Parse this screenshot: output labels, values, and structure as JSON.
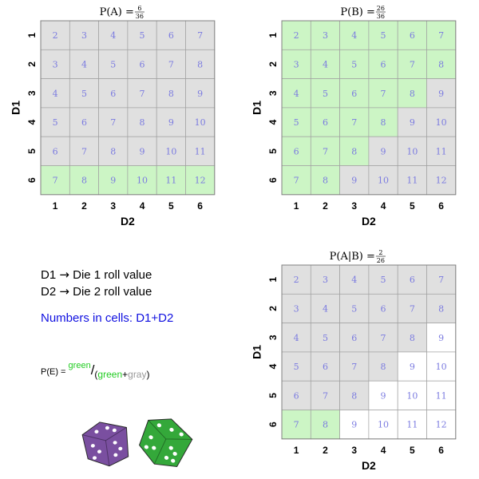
{
  "colors": {
    "green": "#ccf5c5",
    "gray": "#e0e0e0",
    "white": "#ffffff",
    "cell_text": "#7b7be0",
    "grid_line": "#a0a0a0"
  },
  "grids": [
    {
      "id": "pA",
      "title_main": "P(A) = ",
      "title_num": "6",
      "title_den": "36",
      "xlabel": "D2",
      "ylabel": "D1",
      "cells": [
        [
          "gray",
          "gray",
          "gray",
          "gray",
          "gray",
          "gray"
        ],
        [
          "gray",
          "gray",
          "gray",
          "gray",
          "gray",
          "gray"
        ],
        [
          "gray",
          "gray",
          "gray",
          "gray",
          "gray",
          "gray"
        ],
        [
          "gray",
          "gray",
          "gray",
          "gray",
          "gray",
          "gray"
        ],
        [
          "gray",
          "gray",
          "gray",
          "gray",
          "gray",
          "gray"
        ],
        [
          "green",
          "green",
          "green",
          "green",
          "green",
          "green"
        ]
      ]
    },
    {
      "id": "pB",
      "title_main": "P(B) = ",
      "title_num": "26",
      "title_den": "36",
      "xlabel": "D2",
      "ylabel": "D1",
      "cells": [
        [
          "green",
          "green",
          "green",
          "green",
          "green",
          "green"
        ],
        [
          "green",
          "green",
          "green",
          "green",
          "green",
          "green"
        ],
        [
          "green",
          "green",
          "green",
          "green",
          "green",
          "gray"
        ],
        [
          "green",
          "green",
          "green",
          "green",
          "gray",
          "gray"
        ],
        [
          "green",
          "green",
          "green",
          "gray",
          "gray",
          "gray"
        ],
        [
          "green",
          "green",
          "gray",
          "gray",
          "gray",
          "gray"
        ]
      ]
    },
    {
      "id": "pAB",
      "title_main": "P(A|B) = ",
      "title_num": "2",
      "title_den": "26",
      "xlabel": "D2",
      "ylabel": "D1",
      "cells": [
        [
          "gray",
          "gray",
          "gray",
          "gray",
          "gray",
          "gray"
        ],
        [
          "gray",
          "gray",
          "gray",
          "gray",
          "gray",
          "gray"
        ],
        [
          "gray",
          "gray",
          "gray",
          "gray",
          "gray",
          "white"
        ],
        [
          "gray",
          "gray",
          "gray",
          "gray",
          "white",
          "white"
        ],
        [
          "gray",
          "gray",
          "gray",
          "white",
          "white",
          "white"
        ],
        [
          "green",
          "green",
          "white",
          "white",
          "white",
          "white"
        ]
      ]
    }
  ],
  "ticks": [
    "1",
    "2",
    "3",
    "4",
    "5",
    "6"
  ],
  "legend": {
    "d1_name": "D1",
    "d1_desc": "Die 1 roll value",
    "d2_name": "D2",
    "d2_desc": "Die 2 roll value",
    "arrow": "→",
    "cells_note": "Numbers in cells: D1+D2",
    "formula_prefix": "P(E) = ",
    "formula_green": "green",
    "formula_slash": "/",
    "formula_open": "(",
    "formula_plus": "+",
    "formula_gray": "gray",
    "formula_close": ")"
  },
  "dice": [
    {
      "name": "purple-die",
      "color": "#7a4fa0"
    },
    {
      "name": "green-die",
      "color": "#34a83a"
    }
  ]
}
